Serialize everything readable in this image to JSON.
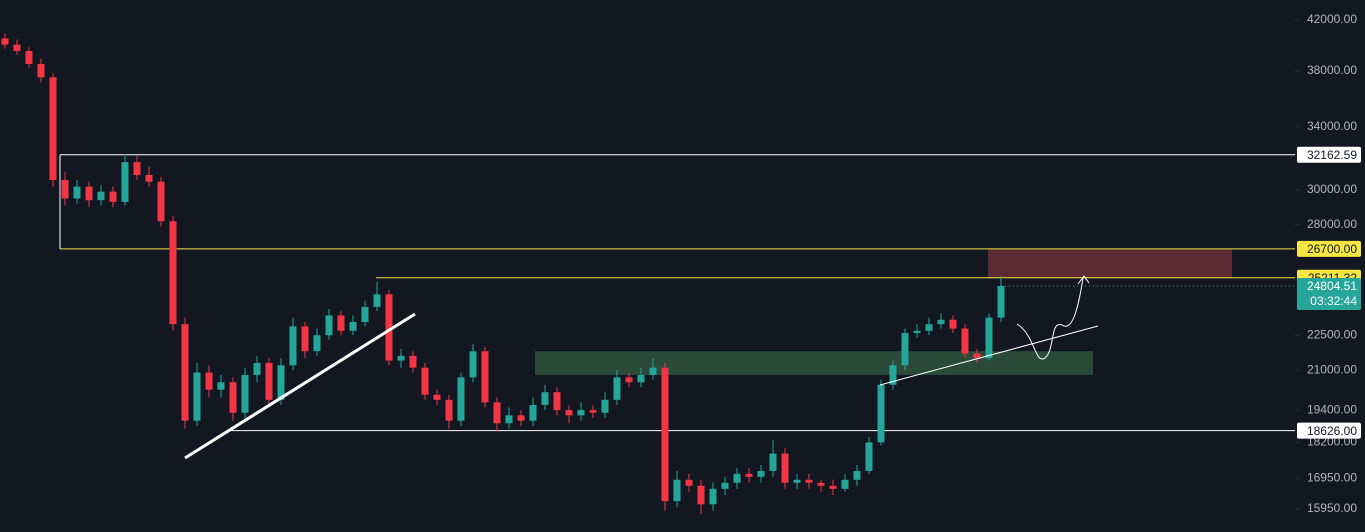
{
  "chart_data": {
    "type": "candlestick",
    "log_scale": true,
    "up_color": "#26a69a",
    "down_color": "#f23645",
    "ylim": [
      15240,
      43700
    ],
    "yticks": [
      {
        "value": 42000,
        "label": "42000.00"
      },
      {
        "value": 38000,
        "label": "38000.00"
      },
      {
        "value": 34000,
        "label": "34000.00"
      },
      {
        "value": 30000,
        "label": "30000.00"
      },
      {
        "value": 28000,
        "label": "28000.00"
      },
      {
        "value": 22500,
        "label": "22500.00"
      },
      {
        "value": 21000,
        "label": "21000.00"
      },
      {
        "value": 19400,
        "label": "19400.00"
      },
      {
        "value": 18200,
        "label": "18200.00"
      },
      {
        "value": 16950,
        "label": "16950.00"
      },
      {
        "value": 15950,
        "label": "15950.00"
      }
    ],
    "levels": [
      {
        "value": 32162.59,
        "color": "#ffffff"
      },
      {
        "value": {
          "value": 26700,
          "label": "26700.00"
        },
        "color": "#f5e642"
      },
      {
        "value": 25211.32,
        "color": "#f5e642"
      },
      {
        "value": {
          "value": 18626,
          "label": "18626.00"
        },
        "color": "#ffffff"
      }
    ],
    "zones": [
      {
        "high": 26700,
        "low": 25211.32,
        "color": "#5c2a33"
      },
      {
        "high": 21800,
        "low": 20800,
        "color": "#2a4a3a"
      }
    ],
    "countdown": "03:32:44",
    "candles": [
      [
        40500,
        40900,
        39700,
        40000
      ],
      [
        40000,
        40400,
        39200,
        39500
      ],
      [
        39500,
        39800,
        38200,
        38500
      ],
      [
        38500,
        38900,
        37100,
        37500
      ],
      [
        37500,
        37800,
        30200,
        30600
      ],
      [
        30600,
        31100,
        29100,
        29500
      ],
      [
        29500,
        30600,
        29200,
        30200
      ],
      [
        30200,
        30500,
        29000,
        29400
      ],
      [
        29400,
        30300,
        29100,
        29900
      ],
      [
        29900,
        30200,
        29000,
        29300
      ],
      [
        29300,
        32200,
        29100,
        31700
      ],
      [
        31700,
        32100,
        30600,
        30900
      ],
      [
        30900,
        31400,
        30200,
        30500
      ],
      [
        30500,
        30800,
        27900,
        28200
      ],
      [
        28200,
        28500,
        22700,
        23000
      ],
      [
        23000,
        23300,
        18700,
        19000
      ],
      [
        19000,
        21300,
        18800,
        20900
      ],
      [
        20900,
        21200,
        19900,
        20200
      ],
      [
        20200,
        20800,
        19900,
        20500
      ],
      [
        20500,
        20700,
        19000,
        19300
      ],
      [
        19300,
        21100,
        19100,
        20800
      ],
      [
        20800,
        21600,
        20500,
        21300
      ],
      [
        21300,
        21500,
        19600,
        19800
      ],
      [
        19800,
        21500,
        19600,
        21200
      ],
      [
        21200,
        23300,
        21000,
        22900
      ],
      [
        22900,
        23100,
        21500,
        21800
      ],
      [
        21800,
        22800,
        21600,
        22500
      ],
      [
        22500,
        23700,
        22300,
        23400
      ],
      [
        23400,
        23600,
        22500,
        22700
      ],
      [
        22700,
        23400,
        22500,
        23100
      ],
      [
        23100,
        24100,
        22900,
        23800
      ],
      [
        23800,
        25000,
        23600,
        24400
      ],
      [
        24400,
        24600,
        21200,
        21400
      ],
      [
        21400,
        21900,
        21100,
        21600
      ],
      [
        21600,
        21800,
        20900,
        21100
      ],
      [
        21100,
        21300,
        19800,
        20000
      ],
      [
        20000,
        20200,
        19600,
        19800
      ],
      [
        19800,
        20000,
        18700,
        19000
      ],
      [
        19000,
        20900,
        18800,
        20700
      ],
      [
        20700,
        22100,
        20500,
        21800
      ],
      [
        21800,
        22000,
        19500,
        19700
      ],
      [
        19700,
        19900,
        18600,
        18900
      ],
      [
        18900,
        19500,
        18700,
        19200
      ],
      [
        19200,
        19400,
        18800,
        19000
      ],
      [
        19000,
        19900,
        18800,
        19600
      ],
      [
        19600,
        20400,
        19400,
        20100
      ],
      [
        20100,
        20300,
        19200,
        19400
      ],
      [
        19400,
        19600,
        18900,
        19200
      ],
      [
        19200,
        19700,
        19000,
        19400
      ],
      [
        19400,
        19600,
        19100,
        19300
      ],
      [
        19300,
        20100,
        19100,
        19800
      ],
      [
        19800,
        21000,
        19600,
        20700
      ],
      [
        20700,
        20900,
        20300,
        20500
      ],
      [
        20500,
        21100,
        20300,
        20800
      ],
      [
        20800,
        21500,
        20600,
        21100
      ],
      [
        21100,
        21300,
        15900,
        16200
      ],
      [
        16200,
        17200,
        16000,
        16900
      ],
      [
        16900,
        17100,
        16500,
        16700
      ],
      [
        16700,
        16900,
        15800,
        16100
      ],
      [
        16100,
        16800,
        15900,
        16600
      ],
      [
        16600,
        17000,
        16400,
        16800
      ],
      [
        16800,
        17300,
        16600,
        17100
      ],
      [
        17100,
        17300,
        16800,
        17000
      ],
      [
        17000,
        17400,
        16800,
        17200
      ],
      [
        17200,
        18300,
        17000,
        17800
      ],
      [
        17800,
        18000,
        16600,
        16800
      ],
      [
        16800,
        17100,
        16600,
        16900
      ],
      [
        16900,
        17100,
        16600,
        16800
      ],
      [
        16800,
        16900,
        16500,
        16700
      ],
      [
        16700,
        16900,
        16400,
        16600
      ],
      [
        16600,
        17100,
        16500,
        16900
      ],
      [
        16900,
        17400,
        16700,
        17200
      ],
      [
        17200,
        18400,
        17100,
        18200
      ],
      [
        18200,
        20600,
        18100,
        20400
      ],
      [
        20400,
        21400,
        20200,
        21200
      ],
      [
        21200,
        22800,
        21000,
        22600
      ],
      [
        22600,
        23000,
        22400,
        22700
      ],
      [
        22700,
        23300,
        22500,
        23000
      ],
      [
        23000,
        23500,
        22800,
        23200
      ],
      [
        23200,
        23400,
        22600,
        22800
      ],
      [
        22800,
        23000,
        21500,
        21700
      ],
      [
        21700,
        21900,
        21300,
        21500
      ],
      [
        21500,
        23500,
        21400,
        23300
      ],
      [
        23300,
        25300,
        23100,
        24804.51
      ]
    ]
  }
}
